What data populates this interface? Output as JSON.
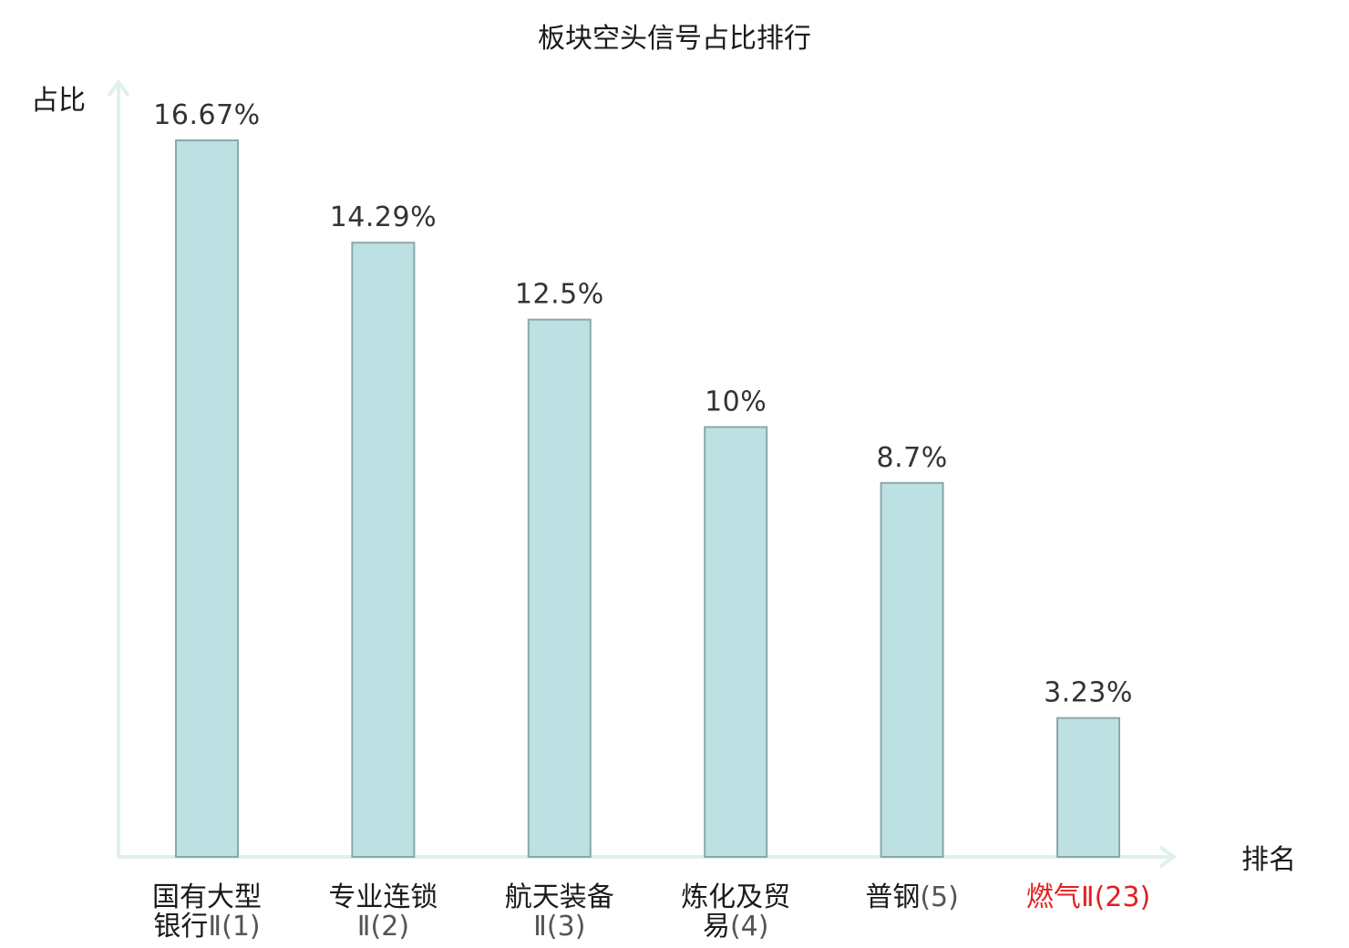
{
  "chart_data": {
    "type": "bar",
    "title": "板块空头信号占比排行",
    "ylabel": "占比",
    "xlabel": "排名",
    "ylim": [
      0,
      18
    ],
    "grid": false,
    "categories": [
      {
        "lines": [
          {
            "name": "国有大型",
            "rank": ""
          },
          {
            "name": "银行",
            "rank": "Ⅱ(1)"
          }
        ],
        "highlight": false
      },
      {
        "lines": [
          {
            "name": "专业连锁",
            "rank": ""
          },
          {
            "name": "",
            "rank": "Ⅱ(2)"
          }
        ],
        "highlight": false
      },
      {
        "lines": [
          {
            "name": "航天装备",
            "rank": ""
          },
          {
            "name": "",
            "rank": "Ⅱ(3)"
          }
        ],
        "highlight": false
      },
      {
        "lines": [
          {
            "name": "炼化及贸",
            "rank": ""
          },
          {
            "name": "易",
            "rank": "(4)"
          }
        ],
        "highlight": false
      },
      {
        "lines": [
          {
            "name": "普钢",
            "rank": "(5)"
          }
        ],
        "highlight": false
      },
      {
        "lines": [
          {
            "name": "燃气",
            "rank": "Ⅱ(23)"
          }
        ],
        "highlight": true
      }
    ],
    "values": [
      16.67,
      14.29,
      12.5,
      10,
      8.7,
      3.23
    ],
    "value_labels": [
      "16.67%",
      "14.29%",
      "12.5%",
      "10%",
      "8.7%",
      "3.23%"
    ],
    "colors": {
      "bar_fill": "#bde0e3",
      "bar_stroke": "#8aa8aa",
      "axis": "#dff1ee",
      "highlight_text": "#e02020"
    }
  }
}
